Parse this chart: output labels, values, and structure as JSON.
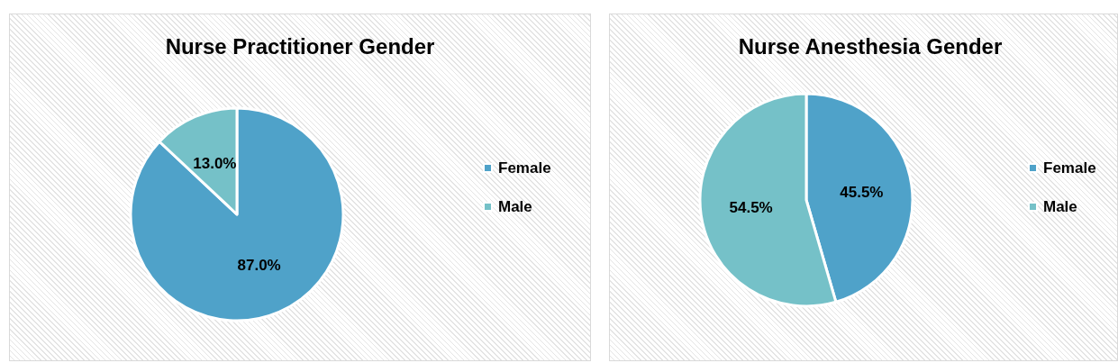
{
  "chart_data": [
    {
      "type": "pie",
      "title": "Nurse Practitioner Gender",
      "categories": [
        "Female",
        "Male"
      ],
      "values": [
        87.0,
        13.0
      ],
      "value_labels": [
        "87.0%",
        "13.0%"
      ],
      "colors": [
        "#4fa2c9",
        "#75c1c8"
      ],
      "legend": "right"
    },
    {
      "type": "pie",
      "title": "Nurse Anesthesia Gender",
      "categories": [
        "Female",
        "Male"
      ],
      "values": [
        45.5,
        54.5
      ],
      "value_labels": [
        "45.5%",
        "54.5%"
      ],
      "colors": [
        "#4fa2c9",
        "#75c1c8"
      ],
      "legend": "right"
    }
  ]
}
